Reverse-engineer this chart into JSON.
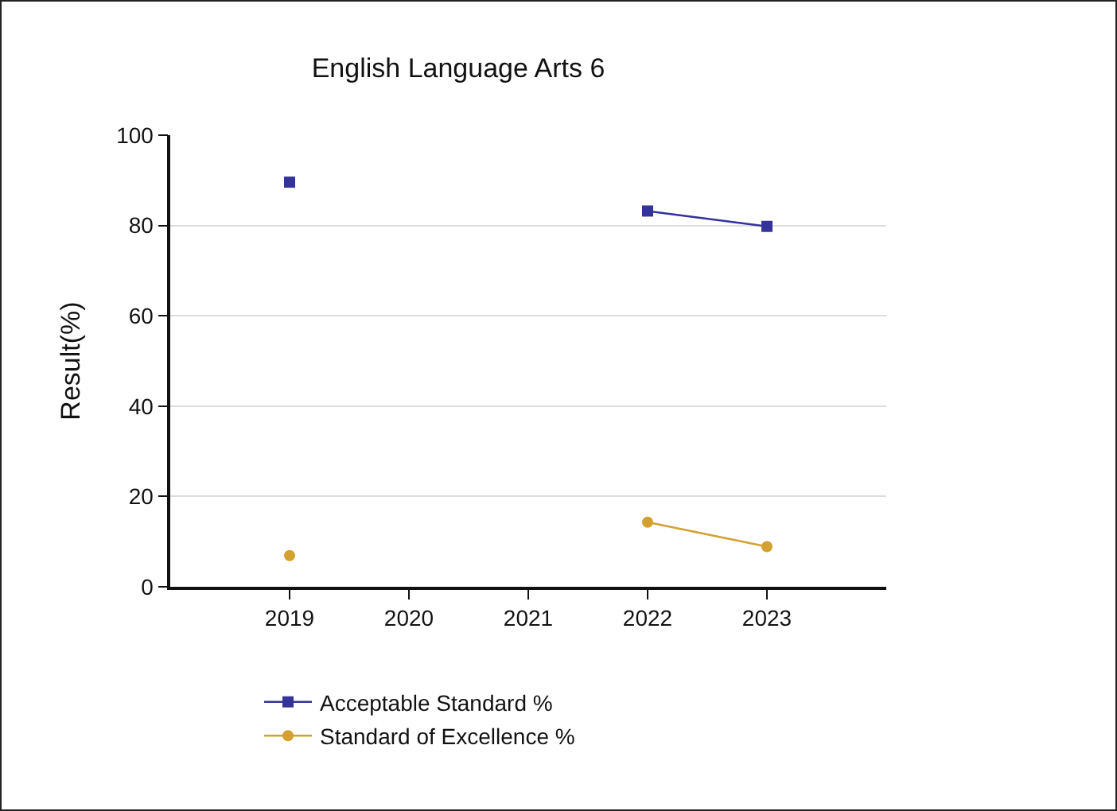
{
  "chart_data": {
    "type": "line",
    "title": "English Language Arts 6",
    "ylabel": "Result(%)",
    "categories": [
      "2019",
      "2020",
      "2021",
      "2022",
      "2023"
    ],
    "series": [
      {
        "name": "Acceptable Standard %",
        "color": "#333399",
        "marker": "square",
        "values": [
          89.6,
          null,
          null,
          83.2,
          79.8
        ]
      },
      {
        "name": "Standard of Excellence %",
        "color": "#d4a030",
        "marker": "circle",
        "values": [
          6.9,
          null,
          null,
          14.3,
          8.9
        ]
      }
    ],
    "ylim": [
      0,
      100
    ],
    "yticks": [
      0,
      20,
      40,
      60,
      80,
      100
    ],
    "grid": "y",
    "legend": "bottom left",
    "line_style": "solid"
  }
}
